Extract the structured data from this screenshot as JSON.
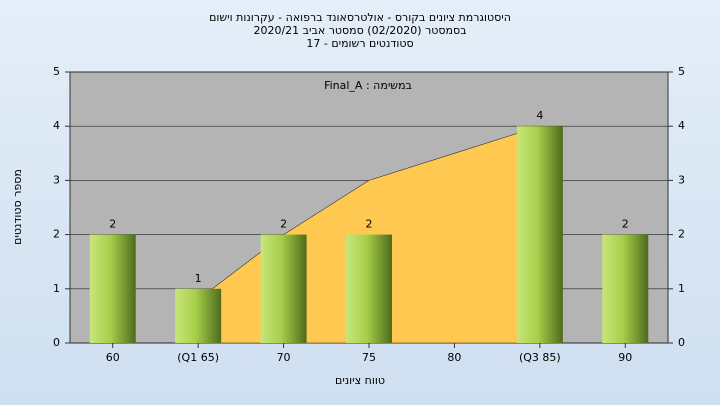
{
  "chart_data": {
    "type": "bar",
    "title": "היסטוגרמת ציונים בקורס - אולטרסאונד ברפואה - עקרונות וישום",
    "subtitle": "בסמסטר  (02/2020)  סמסטר אביב 2020/21",
    "subtitle2": "סטודנטים רשומים - 17",
    "annotation": "Final_A : במשימה",
    "y_label": "מספר סטודנטים",
    "x_label": "טווח ציונים",
    "categories": [
      "60",
      "(Q1 65)",
      "70",
      "75",
      "80",
      "(Q3 85)",
      "90"
    ],
    "values": [
      2,
      1,
      2,
      2,
      null,
      4,
      2
    ],
    "color": "#9cc63f",
    "area": {
      "color": "#ffc850",
      "values": [
        null,
        0.8,
        2,
        3,
        3.5,
        4,
        null
      ]
    },
    "ylim": [
      0,
      5
    ],
    "yticks": [
      0,
      1,
      2,
      3,
      4,
      5
    ],
    "y2lim": [
      0,
      5
    ],
    "y2ticks": [
      0,
      1,
      2,
      3,
      4,
      5
    ],
    "grid": true
  }
}
